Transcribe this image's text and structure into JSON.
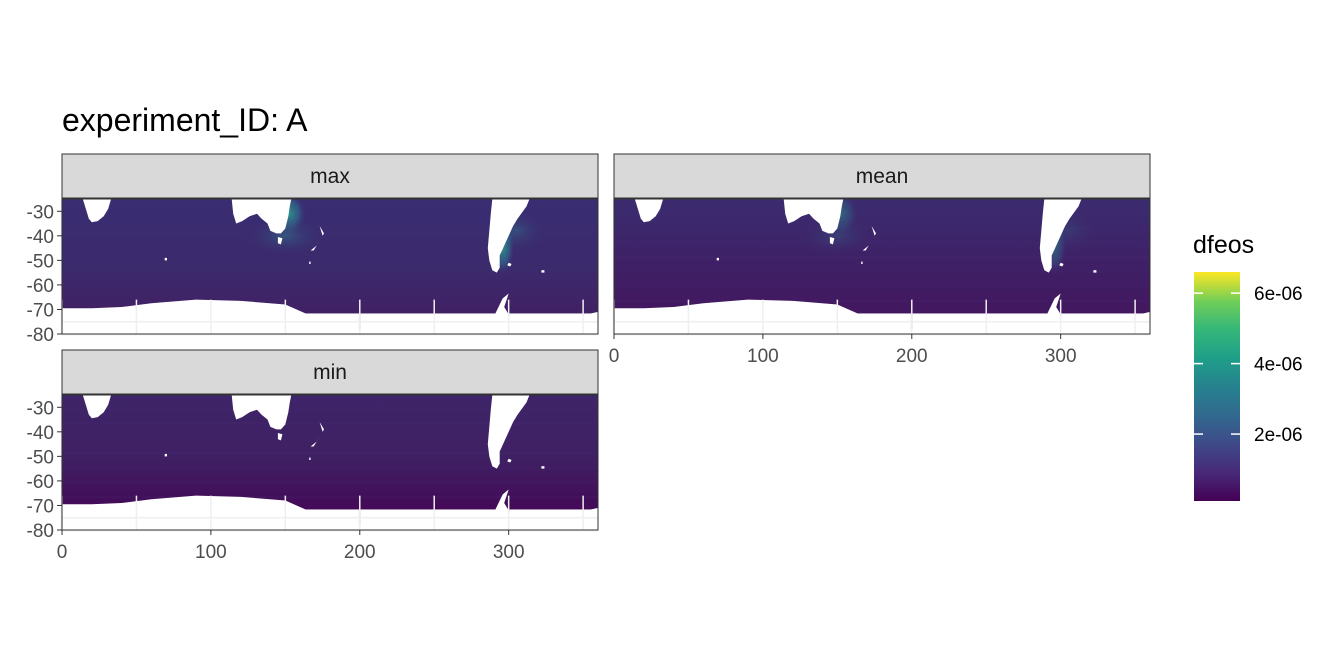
{
  "chart_data": {
    "type": "heatmap",
    "title": "experiment_ID: A",
    "xlabel": "",
    "ylabel": "",
    "xlim": [
      0,
      360
    ],
    "ylim": [
      -80,
      -25
    ],
    "x_ticks": [
      0,
      100,
      200,
      300
    ],
    "y_ticks": [
      -30,
      -40,
      -50,
      -60,
      -70,
      -80
    ],
    "panels": [
      {
        "label": "max"
      },
      {
        "label": "mean"
      },
      {
        "label": "min"
      }
    ],
    "legend": {
      "title": "dfeos",
      "placement": "right",
      "colormap": "viridis",
      "range": [
        1e-07,
        6.6e-06
      ],
      "ticks": [
        {
          "value": 2e-06,
          "label": "2e-06"
        },
        {
          "value": 4e-06,
          "label": "4e-06"
        },
        {
          "value": 6e-06,
          "label": "6e-06"
        }
      ]
    },
    "colors": {
      "ocean_low": "#440154",
      "ocean_base": "#3b2c6e",
      "land": "#ffffff",
      "strip_fill": "#d9d9d9",
      "grid": "#ebebeb"
    }
  }
}
